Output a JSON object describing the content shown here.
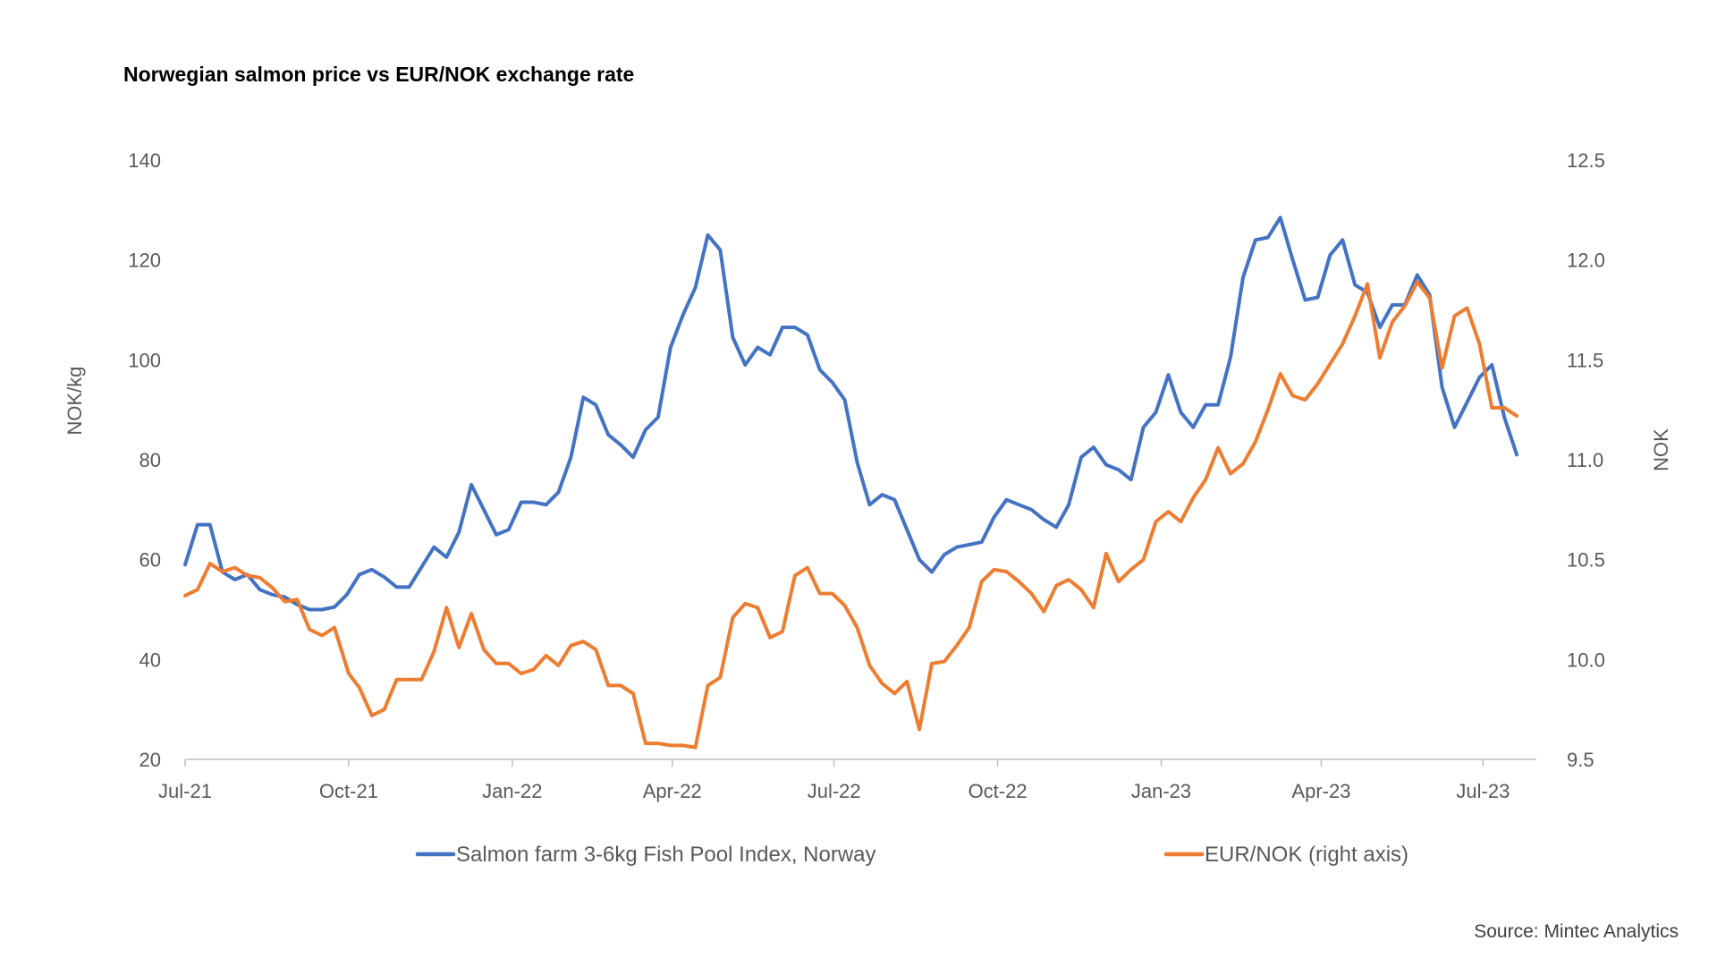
{
  "chart_data": {
    "type": "line",
    "title": "Norwegian salmon price vs EUR/NOK exchange rate",
    "source": "Source: Mintec Analytics",
    "ylabel": "NOK/kg",
    "y2label": "NOK",
    "ylim": [
      20,
      140
    ],
    "y2lim": [
      9.5,
      12.5
    ],
    "yticks": [
      20,
      40,
      60,
      80,
      100,
      120,
      140
    ],
    "y2ticks": [
      "9.5",
      "10.0",
      "10.5",
      "11.0",
      "11.5",
      "12.0",
      "12.5"
    ],
    "xlim": [
      "2021-07-01",
      "2023-07-31"
    ],
    "xticks": [
      {
        "date": "2021-07-01",
        "label": "Jul-21"
      },
      {
        "date": "2021-10-01",
        "label": "Oct-21"
      },
      {
        "date": "2022-01-01",
        "label": "Jan-22"
      },
      {
        "date": "2022-04-01",
        "label": "Apr-22"
      },
      {
        "date": "2022-07-01",
        "label": "Jul-22"
      },
      {
        "date": "2022-10-01",
        "label": "Oct-22"
      },
      {
        "date": "2023-01-01",
        "label": "Jan-23"
      },
      {
        "date": "2023-04-01",
        "label": "Apr-23"
      },
      {
        "date": "2023-07-01",
        "label": "Jul-23"
      }
    ],
    "grid": false,
    "legend_position": "bottom",
    "series": [
      {
        "name": "Salmon farm 3-6kg Fish Pool Index, Norway",
        "axis": "left",
        "color": "#4472C4",
        "points": [
          [
            "2021-07-01",
            59
          ],
          [
            "2021-07-08",
            67
          ],
          [
            "2021-07-15",
            67
          ],
          [
            "2021-07-22",
            57.5
          ],
          [
            "2021-07-29",
            56
          ],
          [
            "2021-08-05",
            57
          ],
          [
            "2021-08-12",
            54
          ],
          [
            "2021-08-19",
            53
          ],
          [
            "2021-08-26",
            52.5
          ],
          [
            "2021-09-02",
            51
          ],
          [
            "2021-09-09",
            50
          ],
          [
            "2021-09-16",
            50
          ],
          [
            "2021-09-23",
            50.5
          ],
          [
            "2021-09-30",
            53
          ],
          [
            "2021-10-07",
            57
          ],
          [
            "2021-10-14",
            58
          ],
          [
            "2021-10-21",
            56.5
          ],
          [
            "2021-10-28",
            54.5
          ],
          [
            "2021-11-04",
            54.5
          ],
          [
            "2021-11-11",
            58.5
          ],
          [
            "2021-11-18",
            62.5
          ],
          [
            "2021-11-25",
            60.5
          ],
          [
            "2021-12-02",
            65.5
          ],
          [
            "2021-12-09",
            75
          ],
          [
            "2021-12-16",
            70
          ],
          [
            "2021-12-23",
            65
          ],
          [
            "2021-12-30",
            66
          ],
          [
            "2022-01-06",
            71.5
          ],
          [
            "2022-01-13",
            71.5
          ],
          [
            "2022-01-20",
            71
          ],
          [
            "2022-01-27",
            73.5
          ],
          [
            "2022-02-03",
            80.5
          ],
          [
            "2022-02-10",
            92.5
          ],
          [
            "2022-02-17",
            91
          ],
          [
            "2022-02-24",
            85
          ],
          [
            "2022-03-03",
            83
          ],
          [
            "2022-03-10",
            80.5
          ],
          [
            "2022-03-17",
            86
          ],
          [
            "2022-03-24",
            88.5
          ],
          [
            "2022-03-31",
            102.5
          ],
          [
            "2022-04-07",
            109
          ],
          [
            "2022-04-14",
            114.5
          ],
          [
            "2022-04-21",
            125
          ],
          [
            "2022-04-28",
            122
          ],
          [
            "2022-05-05",
            104.5
          ],
          [
            "2022-05-12",
            99
          ],
          [
            "2022-05-19",
            102.5
          ],
          [
            "2022-05-26",
            101
          ],
          [
            "2022-06-02",
            106.5
          ],
          [
            "2022-06-09",
            106.5
          ],
          [
            "2022-06-16",
            105
          ],
          [
            "2022-06-23",
            98
          ],
          [
            "2022-06-30",
            95.5
          ],
          [
            "2022-07-07",
            92
          ],
          [
            "2022-07-14",
            79.5
          ],
          [
            "2022-07-21",
            71
          ],
          [
            "2022-07-28",
            73
          ],
          [
            "2022-08-04",
            72
          ],
          [
            "2022-08-11",
            66
          ],
          [
            "2022-08-18",
            60
          ],
          [
            "2022-08-25",
            57.5
          ],
          [
            "2022-09-01",
            61
          ],
          [
            "2022-09-08",
            62.5
          ],
          [
            "2022-09-15",
            63
          ],
          [
            "2022-09-22",
            63.5
          ],
          [
            "2022-09-29",
            68.5
          ],
          [
            "2022-10-06",
            72
          ],
          [
            "2022-10-13",
            71
          ],
          [
            "2022-10-20",
            70
          ],
          [
            "2022-10-27",
            68
          ],
          [
            "2022-11-03",
            66.5
          ],
          [
            "2022-11-10",
            71
          ],
          [
            "2022-11-17",
            80.5
          ],
          [
            "2022-11-24",
            82.5
          ],
          [
            "2022-12-01",
            79
          ],
          [
            "2022-12-08",
            78
          ],
          [
            "2022-12-15",
            76
          ],
          [
            "2022-12-22",
            86.5
          ],
          [
            "2022-12-29",
            89.5
          ],
          [
            "2023-01-05",
            97
          ],
          [
            "2023-01-12",
            89.5
          ],
          [
            "2023-01-19",
            86.5
          ],
          [
            "2023-01-26",
            91
          ],
          [
            "2023-02-02",
            91
          ],
          [
            "2023-02-09",
            100.5
          ],
          [
            "2023-02-16",
            116.5
          ],
          [
            "2023-02-23",
            124
          ],
          [
            "2023-03-02",
            124.5
          ],
          [
            "2023-03-09",
            128.5
          ],
          [
            "2023-03-16",
            120
          ],
          [
            "2023-03-23",
            112
          ],
          [
            "2023-03-30",
            112.5
          ],
          [
            "2023-04-06",
            121
          ],
          [
            "2023-04-13",
            124
          ],
          [
            "2023-04-20",
            115
          ],
          [
            "2023-04-27",
            113.5
          ],
          [
            "2023-05-04",
            106.5
          ],
          [
            "2023-05-11",
            111
          ],
          [
            "2023-05-18",
            111
          ],
          [
            "2023-05-25",
            117
          ],
          [
            "2023-06-01",
            113
          ],
          [
            "2023-06-08",
            94.5
          ],
          [
            "2023-06-15",
            86.5
          ],
          [
            "2023-06-22",
            91.5
          ],
          [
            "2023-06-29",
            96.5
          ],
          [
            "2023-07-06",
            99
          ],
          [
            "2023-07-13",
            88.5
          ],
          [
            "2023-07-20",
            81
          ]
        ]
      },
      {
        "name": "EUR/NOK (right axis)",
        "axis": "right",
        "color": "#ED7D31",
        "points": [
          [
            "2021-07-01",
            10.32
          ],
          [
            "2021-07-08",
            10.35
          ],
          [
            "2021-07-15",
            10.48
          ],
          [
            "2021-07-22",
            10.44
          ],
          [
            "2021-07-29",
            10.46
          ],
          [
            "2021-08-05",
            10.42
          ],
          [
            "2021-08-12",
            10.41
          ],
          [
            "2021-08-19",
            10.36
          ],
          [
            "2021-08-26",
            10.29
          ],
          [
            "2021-09-02",
            10.3
          ],
          [
            "2021-09-09",
            10.15
          ],
          [
            "2021-09-16",
            10.12
          ],
          [
            "2021-09-23",
            10.16
          ],
          [
            "2021-10-01",
            9.93
          ],
          [
            "2021-10-07",
            9.86
          ],
          [
            "2021-10-14",
            9.72
          ],
          [
            "2021-10-21",
            9.75
          ],
          [
            "2021-10-28",
            9.9
          ],
          [
            "2021-11-04",
            9.9
          ],
          [
            "2021-11-11",
            9.9
          ],
          [
            "2021-11-18",
            10.04
          ],
          [
            "2021-11-25",
            10.26
          ],
          [
            "2021-12-02",
            10.06
          ],
          [
            "2021-12-09",
            10.23
          ],
          [
            "2021-12-16",
            10.05
          ],
          [
            "2021-12-23",
            9.98
          ],
          [
            "2021-12-30",
            9.98
          ],
          [
            "2022-01-06",
            9.93
          ],
          [
            "2022-01-13",
            9.95
          ],
          [
            "2022-01-20",
            10.02
          ],
          [
            "2022-01-27",
            9.97
          ],
          [
            "2022-02-03",
            10.07
          ],
          [
            "2022-02-10",
            10.09
          ],
          [
            "2022-02-17",
            10.05
          ],
          [
            "2022-02-24",
            9.87
          ],
          [
            "2022-03-03",
            9.87
          ],
          [
            "2022-03-10",
            9.83
          ],
          [
            "2022-03-17",
            9.58
          ],
          [
            "2022-03-24",
            9.58
          ],
          [
            "2022-03-31",
            9.57
          ],
          [
            "2022-04-07",
            9.57
          ],
          [
            "2022-04-14",
            9.56
          ],
          [
            "2022-04-21",
            9.87
          ],
          [
            "2022-04-28",
            9.91
          ],
          [
            "2022-05-05",
            10.21
          ],
          [
            "2022-05-12",
            10.28
          ],
          [
            "2022-05-19",
            10.26
          ],
          [
            "2022-05-26",
            10.11
          ],
          [
            "2022-06-02",
            10.14
          ],
          [
            "2022-06-09",
            10.42
          ],
          [
            "2022-06-16",
            10.46
          ],
          [
            "2022-06-23",
            10.33
          ],
          [
            "2022-06-30",
            10.33
          ],
          [
            "2022-07-07",
            10.27
          ],
          [
            "2022-07-14",
            10.16
          ],
          [
            "2022-07-21",
            9.97
          ],
          [
            "2022-07-28",
            9.88
          ],
          [
            "2022-08-04",
            9.83
          ],
          [
            "2022-08-11",
            9.89
          ],
          [
            "2022-08-18",
            9.65
          ],
          [
            "2022-08-25",
            9.98
          ],
          [
            "2022-09-01",
            9.99
          ],
          [
            "2022-09-08",
            10.07
          ],
          [
            "2022-09-15",
            10.16
          ],
          [
            "2022-09-22",
            10.39
          ],
          [
            "2022-09-29",
            10.45
          ],
          [
            "2022-10-06",
            10.44
          ],
          [
            "2022-10-13",
            10.39
          ],
          [
            "2022-10-20",
            10.33
          ],
          [
            "2022-10-27",
            10.24
          ],
          [
            "2022-11-03",
            10.37
          ],
          [
            "2022-11-10",
            10.4
          ],
          [
            "2022-11-17",
            10.35
          ],
          [
            "2022-11-24",
            10.26
          ],
          [
            "2022-12-01",
            10.53
          ],
          [
            "2022-12-08",
            10.39
          ],
          [
            "2022-12-15",
            10.45
          ],
          [
            "2022-12-22",
            10.5
          ],
          [
            "2022-12-29",
            10.69
          ],
          [
            "2023-01-05",
            10.74
          ],
          [
            "2023-01-12",
            10.69
          ],
          [
            "2023-01-19",
            10.81
          ],
          [
            "2023-01-26",
            10.9
          ],
          [
            "2023-02-02",
            11.06
          ],
          [
            "2023-02-09",
            10.93
          ],
          [
            "2023-02-16",
            10.98
          ],
          [
            "2023-02-23",
            11.09
          ],
          [
            "2023-03-02",
            11.25
          ],
          [
            "2023-03-09",
            11.43
          ],
          [
            "2023-03-16",
            11.32
          ],
          [
            "2023-03-23",
            11.3
          ],
          [
            "2023-03-30",
            11.38
          ],
          [
            "2023-04-06",
            11.48
          ],
          [
            "2023-04-13",
            11.58
          ],
          [
            "2023-04-20",
            11.72
          ],
          [
            "2023-04-27",
            11.88
          ],
          [
            "2023-05-04",
            11.51
          ],
          [
            "2023-05-11",
            11.69
          ],
          [
            "2023-05-18",
            11.77
          ],
          [
            "2023-05-25",
            11.89
          ],
          [
            "2023-06-01",
            11.81
          ],
          [
            "2023-06-08",
            11.46
          ],
          [
            "2023-06-15",
            11.72
          ],
          [
            "2023-06-22",
            11.76
          ],
          [
            "2023-06-29",
            11.58
          ],
          [
            "2023-07-06",
            11.26
          ],
          [
            "2023-07-13",
            11.26
          ],
          [
            "2023-07-20",
            11.22
          ]
        ]
      }
    ]
  }
}
